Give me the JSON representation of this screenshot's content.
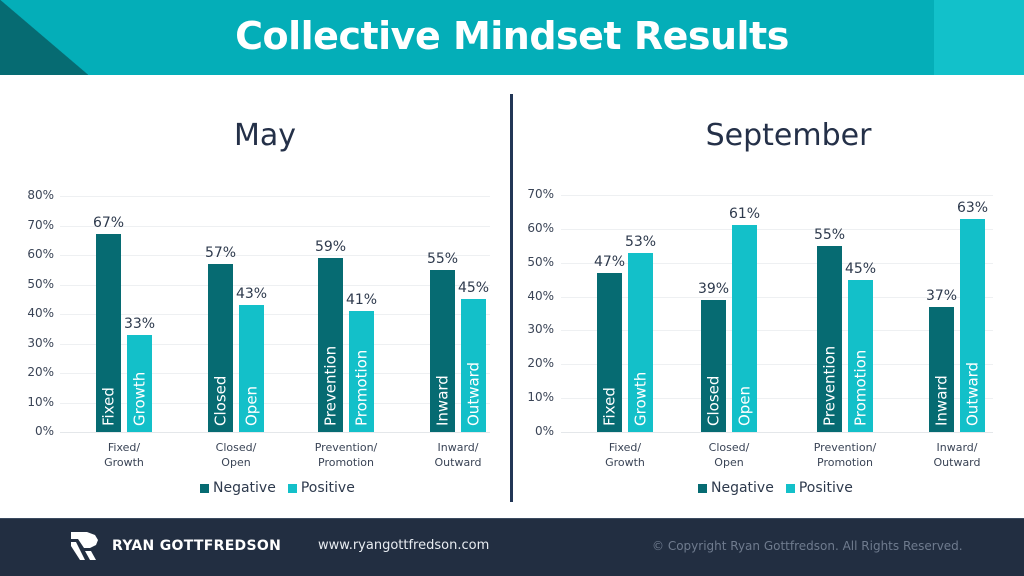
{
  "header": {
    "title": "Collective Mindset Results"
  },
  "colors": {
    "negative": "#066b72",
    "positive": "#13c0c9",
    "header_bg": "#04aeb8",
    "footer_bg": "#222e41",
    "divider": "#223656"
  },
  "panels": [
    {
      "title": "May",
      "y_ticks": [
        "0%",
        "10%",
        "20%",
        "30%",
        "40%",
        "50%",
        "60%",
        "70%",
        "80%"
      ],
      "legend": {
        "negative": "Negative",
        "positive": "Positive"
      }
    },
    {
      "title": "September",
      "y_ticks": [
        "0%",
        "10%",
        "20%",
        "30%",
        "40%",
        "50%",
        "60%",
        "70%"
      ],
      "legend": {
        "negative": "Negative",
        "positive": "Positive"
      }
    }
  ],
  "chart_data": [
    {
      "type": "bar",
      "title": "May",
      "categories": [
        "Fixed/Growth",
        "Closed/Open",
        "Prevention/Promotion",
        "Inward/Outward"
      ],
      "category_lines": [
        [
          "Fixed/",
          "Growth"
        ],
        [
          "Closed/",
          "Open"
        ],
        [
          "Prevention/",
          "Promotion"
        ],
        [
          "Inward/",
          "Outward"
        ]
      ],
      "series": [
        {
          "name": "Negative",
          "values": [
            67,
            57,
            59,
            55
          ],
          "labels": [
            "67%",
            "57%",
            "59%",
            "55%"
          ],
          "bar_text": [
            "Fixed",
            "Closed",
            "Prevention",
            "Inward"
          ]
        },
        {
          "name": "Positive",
          "values": [
            33,
            43,
            41,
            45
          ],
          "labels": [
            "33%",
            "43%",
            "41%",
            "45%"
          ],
          "bar_text": [
            "Growth",
            "Open",
            "Promotion",
            "Outward"
          ]
        }
      ],
      "xlabel": "",
      "ylabel": "",
      "ylim": [
        0,
        80
      ],
      "grid": true,
      "legend_position": "bottom"
    },
    {
      "type": "bar",
      "title": "September",
      "categories": [
        "Fixed/Growth",
        "Closed/Open",
        "Prevention/Promotion",
        "Inward/Outward"
      ],
      "category_lines": [
        [
          "Fixed/",
          "Growth"
        ],
        [
          "Closed/",
          "Open"
        ],
        [
          "Prevention/",
          "Promotion"
        ],
        [
          "Inward/",
          "Outward"
        ]
      ],
      "series": [
        {
          "name": "Negative",
          "values": [
            47,
            39,
            55,
            37
          ],
          "labels": [
            "47%",
            "39%",
            "55%",
            "37%"
          ],
          "bar_text": [
            "Fixed",
            "Closed",
            "Prevention",
            "Inward"
          ]
        },
        {
          "name": "Positive",
          "values": [
            53,
            61,
            45,
            63
          ],
          "labels": [
            "53%",
            "61%",
            "45%",
            "63%"
          ],
          "bar_text": [
            "Growth",
            "Open",
            "Promotion",
            "Outward"
          ]
        }
      ],
      "xlabel": "",
      "ylabel": "",
      "ylim": [
        0,
        70
      ],
      "grid": true,
      "legend_position": "bottom"
    }
  ],
  "footer": {
    "brand": "RYAN GOTTFREDSON",
    "url": "www.ryangottfredson.com",
    "copyright": "© Copyright Ryan Gottfredson. All Rights Reserved."
  }
}
